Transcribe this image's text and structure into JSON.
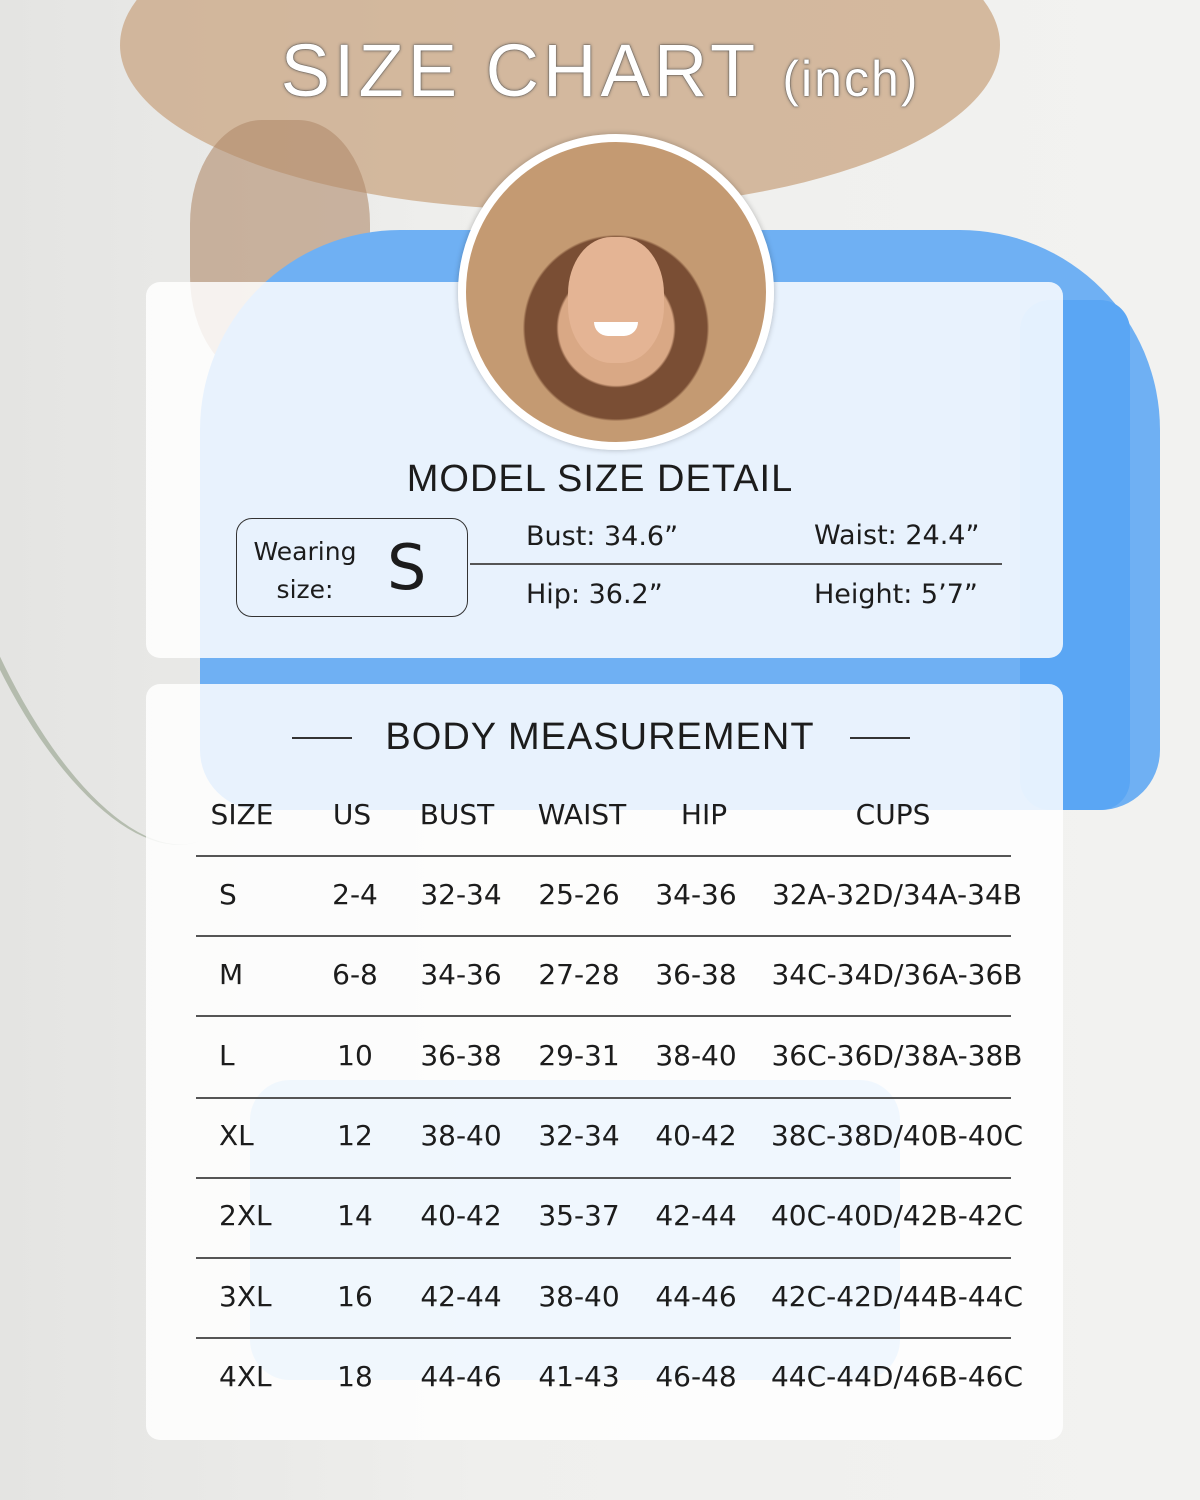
{
  "title": {
    "main": "SIZE CHART",
    "unit": "(inch)"
  },
  "model": {
    "heading": "MODEL SIZE DETAIL",
    "wearing_label": "Wearing size:",
    "wearing_size": "S",
    "bust": "Bust: 34.6”",
    "waist": "Waist:  24.4”",
    "hip": "Hip:  36.2”",
    "height": "Height: 5’7”"
  },
  "body": {
    "heading": "BODY MEASUREMENT",
    "columns": [
      "SIZE",
      "US",
      "BUST",
      "WAIST",
      "HIP",
      "CUPS"
    ],
    "rows": [
      [
        "S",
        "2-4",
        "32-34",
        "25-26",
        "34-36",
        "32A-32D/34A-34B"
      ],
      [
        "M",
        "6-8",
        "34-36",
        "27-28",
        "36-38",
        "34C-34D/36A-36B"
      ],
      [
        "L",
        "10",
        "36-38",
        "29-31",
        "38-40",
        "36C-36D/38A-38B"
      ],
      [
        "XL",
        "12",
        "38-40",
        "32-34",
        "40-42",
        "38C-38D/40B-40C"
      ],
      [
        "2XL",
        "14",
        "40-42",
        "35-37",
        "42-44",
        "40C-40D/42B-42C"
      ],
      [
        "3XL",
        "16",
        "42-44",
        "38-40",
        "44-46",
        "42C-42D/44B-44C"
      ],
      [
        "4XL",
        "18",
        "44-46",
        "41-43",
        "46-48",
        "44C-44D/46B-46C"
      ]
    ]
  },
  "colors": {
    "garment": "#6fb0f3",
    "hat": "#c9a583"
  }
}
